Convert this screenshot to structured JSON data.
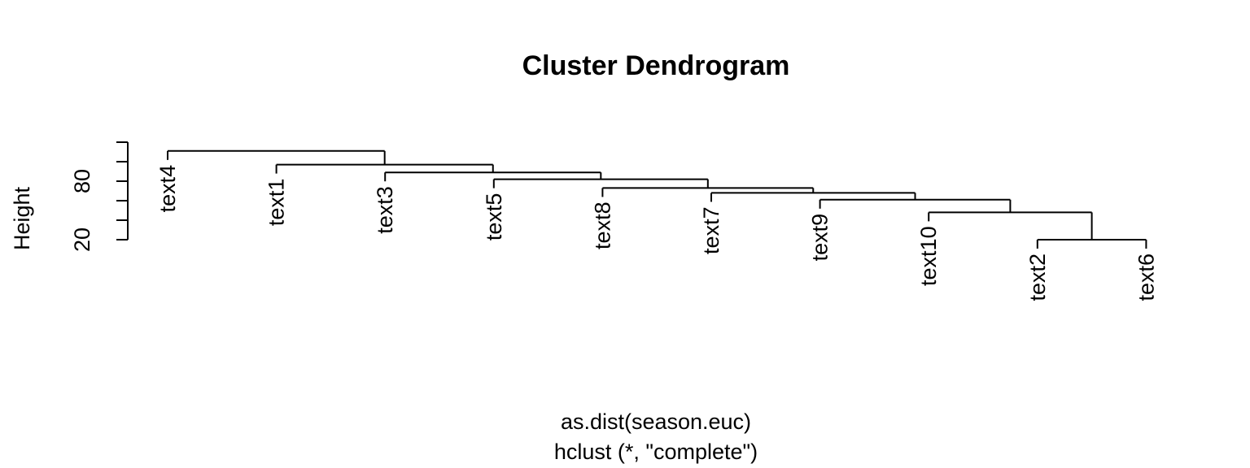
{
  "chart_data": {
    "type": "dendrogram",
    "title": "Cluster Dendrogram",
    "xlabel": "as.dist(season.euc)",
    "sublabel": "hclust (*, \"complete\")",
    "ylabel": "Height",
    "y_ticks": [
      20,
      40,
      60,
      80,
      100,
      120
    ],
    "y_tick_labels": [
      "20",
      "80"
    ],
    "y_range": [
      20,
      120
    ],
    "linkage": "complete",
    "leaf_order": [
      "text4",
      "text1",
      "text3",
      "text5",
      "text8",
      "text7",
      "text9",
      "text10",
      "text2",
      "text6"
    ],
    "merges": [
      {
        "id": "m1",
        "left": "text2",
        "right": "text6",
        "height": 20
      },
      {
        "id": "m2",
        "left": "text10",
        "right": "m1",
        "height": 48
      },
      {
        "id": "m3",
        "left": "text9",
        "right": "m2",
        "height": 61
      },
      {
        "id": "m4",
        "left": "text7",
        "right": "m3",
        "height": 68
      },
      {
        "id": "m5",
        "left": "text8",
        "right": "m4",
        "height": 73
      },
      {
        "id": "m6",
        "left": "text5",
        "right": "m5",
        "height": 82
      },
      {
        "id": "m7",
        "left": "text3",
        "right": "m6",
        "height": 89
      },
      {
        "id": "m8",
        "left": "text1",
        "right": "m7",
        "height": 97
      },
      {
        "id": "m9",
        "left": "text4",
        "right": "m8",
        "height": 111
      }
    ]
  }
}
